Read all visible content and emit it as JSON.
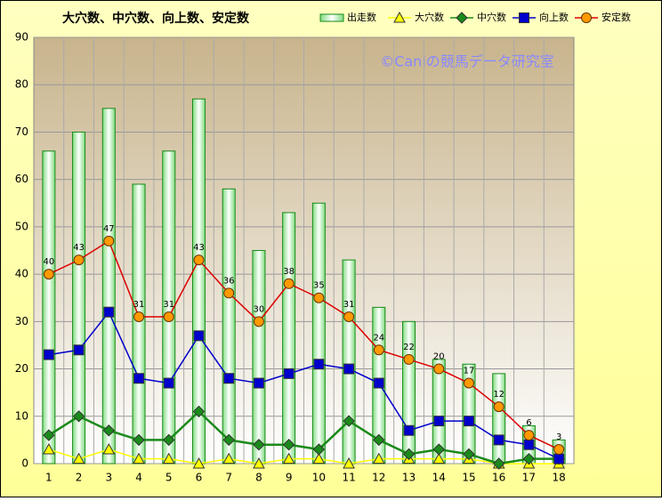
{
  "chart_data": {
    "type": "bar_line",
    "title": "大穴数、中穴数、向上数、安定数",
    "annotation": "©Caniの競馬データ研究室",
    "categories": [
      "1",
      "2",
      "3",
      "4",
      "5",
      "6",
      "7",
      "8",
      "9",
      "10",
      "11",
      "12",
      "13",
      "14",
      "15",
      "16",
      "17",
      "18"
    ],
    "ylim": [
      0,
      90
    ],
    "yticks": [
      0,
      10,
      20,
      30,
      40,
      50,
      60,
      70,
      80,
      90
    ],
    "grid": true,
    "legend": "top-right",
    "series": [
      {
        "name": "出走数",
        "type": "bar",
        "color": "#1a8a1a",
        "values": [
          66,
          70,
          75,
          59,
          66,
          77,
          58,
          45,
          53,
          55,
          43,
          33,
          30,
          22,
          21,
          19,
          8,
          5
        ]
      },
      {
        "name": "大穴数",
        "type": "line",
        "marker": "triangle",
        "color": "#ffff00",
        "values": [
          3,
          1,
          3,
          1,
          1,
          0,
          1,
          0,
          1,
          1,
          0,
          1,
          1,
          1,
          1,
          0,
          0,
          0
        ]
      },
      {
        "name": "中穴数",
        "type": "line",
        "marker": "diamond",
        "color": "#1a8a1a",
        "values": [
          6,
          10,
          7,
          5,
          5,
          11,
          5,
          4,
          4,
          3,
          9,
          5,
          2,
          3,
          2,
          0,
          1,
          1
        ]
      },
      {
        "name": "向上数",
        "type": "line",
        "marker": "square",
        "color": "#0000cc",
        "values": [
          23,
          24,
          32,
          18,
          17,
          27,
          18,
          17,
          19,
          21,
          20,
          17,
          7,
          9,
          9,
          5,
          4,
          1
        ]
      },
      {
        "name": "安定数",
        "type": "line",
        "marker": "circle",
        "color": "#dd0000",
        "marker_color": "#ff9900",
        "data_labels": true,
        "values": [
          40,
          43,
          47,
          31,
          31,
          43,
          36,
          30,
          38,
          35,
          31,
          24,
          22,
          20,
          17,
          12,
          6,
          3
        ]
      }
    ]
  }
}
